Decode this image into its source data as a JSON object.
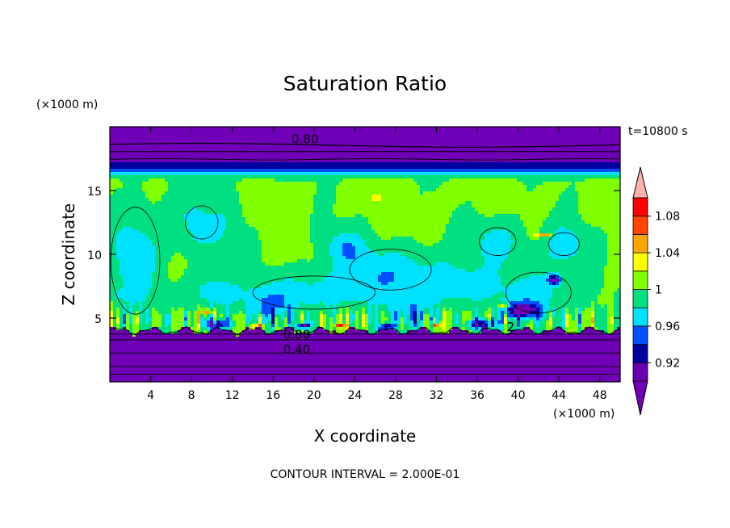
{
  "chart_data": {
    "type": "heatmap",
    "title": "Saturation Ratio",
    "xlabel": "X coordinate",
    "ylabel": "Z coordinate",
    "x_unit": "(×1000 m)",
    "y_unit": "(×1000 m)",
    "time_label": "t=10800 s",
    "footer": "CONTOUR INTERVAL = 2.000E-01",
    "xlim": [
      0,
      50
    ],
    "ylim": [
      0,
      20
    ],
    "x_ticks": [
      4,
      8,
      12,
      16,
      20,
      24,
      28,
      32,
      36,
      40,
      44,
      48
    ],
    "y_ticks": [
      5,
      10,
      15
    ],
    "contour_labels": [
      {
        "text": "0.80",
        "x": 17.8,
        "z": 18.7
      },
      {
        "text": "0.80",
        "x": 17.0,
        "z": 3.4
      },
      {
        "text": "0.40",
        "x": 17.0,
        "z": 2.2
      },
      {
        "text": "2",
        "x": 38.9,
        "z": 4.0
      }
    ],
    "colorbar": {
      "levels": [
        0.9,
        0.92,
        0.94,
        0.96,
        0.98,
        1.0,
        1.02,
        1.04,
        1.06,
        1.08,
        1.1
      ],
      "colors": [
        "#6a00b0",
        "#0000a0",
        "#0050ff",
        "#00e0ff",
        "#00e080",
        "#80ff00",
        "#ffff00",
        "#ffa500",
        "#ff4500",
        "#ff0000"
      ],
      "under_color": "#7000b8",
      "over_color": "#ffb0b0",
      "tick_labels": [
        {
          "value": 0.92,
          "label": "0.92"
        },
        {
          "value": 0.96,
          "label": "0.96"
        },
        {
          "value": 1.0,
          "label": "1"
        },
        {
          "value": 1.04,
          "label": "1.04"
        },
        {
          "value": 1.08,
          "label": "1.08"
        }
      ]
    }
  }
}
